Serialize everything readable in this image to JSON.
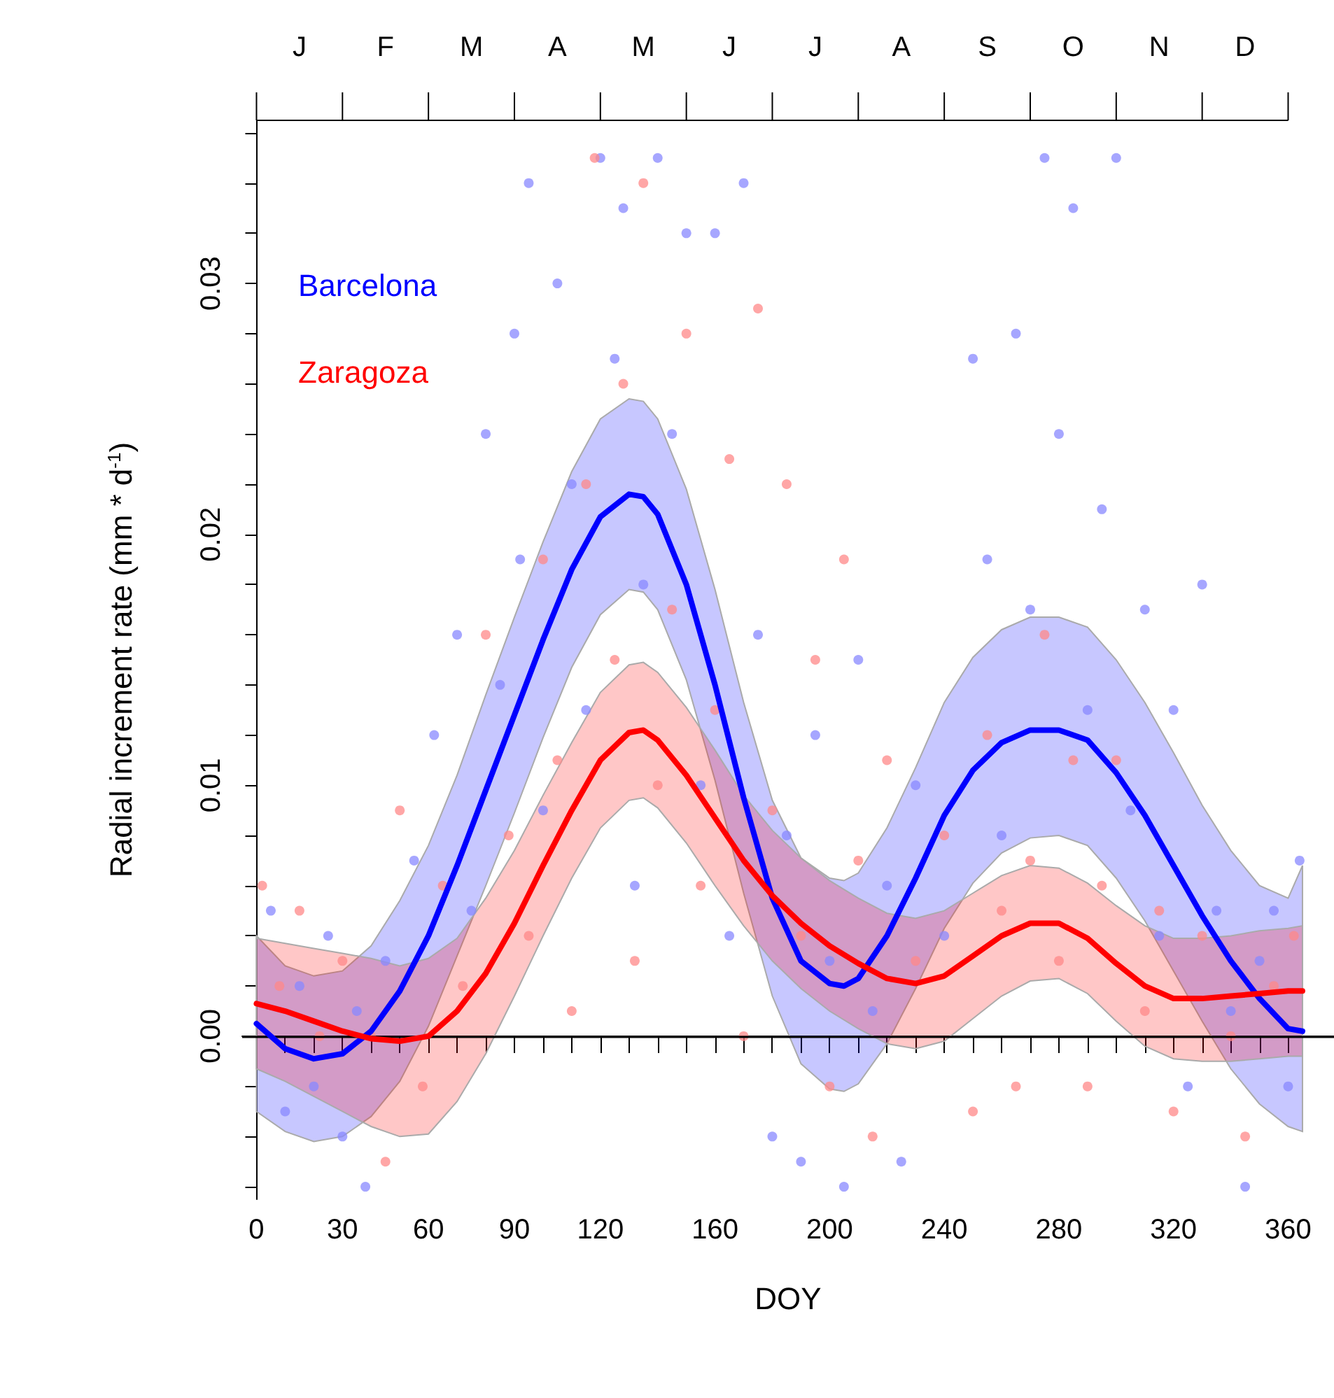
{
  "chart_data": {
    "type": "scatter",
    "xlabel": "DOY",
    "ylabel": "Radial increment rate (mm * d$^{-1}$)",
    "legend": "top left",
    "grid": false,
    "xlim": [
      -5,
      376
    ],
    "ylim": [
      -0.0065,
      0.0365
    ],
    "xticks": [
      0,
      {
        "value": 10,
        "label": null
      },
      {
        "value": 20,
        "label": null
      },
      30,
      {
        "value": 40,
        "label": null
      },
      {
        "value": 50,
        "label": null
      },
      60,
      {
        "value": 70,
        "label": null
      },
      {
        "value": 80,
        "label": null
      },
      90,
      {
        "value": 100,
        "label": null
      },
      {
        "value": 110,
        "label": null
      },
      120,
      {
        "value": 130,
        "label": null
      },
      {
        "value": 140,
        "label": null
      },
      {
        "value": 150,
        "label": null
      },
      160,
      {
        "value": 170,
        "label": null
      },
      {
        "value": 180,
        "label": null
      },
      {
        "value": 190,
        "label": null
      },
      200,
      {
        "value": 210,
        "label": null
      },
      {
        "value": 220,
        "label": null
      },
      {
        "value": 230,
        "label": null
      },
      240,
      {
        "value": 250,
        "label": null
      },
      {
        "value": 260,
        "label": null
      },
      {
        "value": 270,
        "label": null
      },
      280,
      {
        "value": 290,
        "label": null
      },
      {
        "value": 300,
        "label": null
      },
      {
        "value": 310,
        "label": null
      },
      320,
      {
        "value": 330,
        "label": null
      },
      {
        "value": 340,
        "label": null
      },
      {
        "value": 350,
        "label": null
      },
      360
    ],
    "annotations": [
      "J",
      "F",
      "M",
      "A",
      "M",
      "J",
      "J",
      "A",
      "S",
      "O",
      "N",
      "D"
    ],
    "yticks": [
      {
        "value": -0.006,
        "label": null
      },
      {
        "value": -0.004,
        "label": null
      },
      {
        "value": -0.002,
        "label": null
      },
      {
        "value": 0,
        "label": "0.00"
      },
      {
        "value": 0.002,
        "label": null
      },
      {
        "value": 0.004,
        "label": null
      },
      {
        "value": 0.006,
        "label": null
      },
      {
        "value": 0.008,
        "label": null
      },
      0.01,
      {
        "value": 0.012,
        "label": null
      },
      {
        "value": 0.014,
        "label": null
      },
      {
        "value": 0.016,
        "label": null
      },
      {
        "value": 0.018,
        "label": null
      },
      0.02,
      {
        "value": 0.022,
        "label": null
      },
      {
        "value": 0.024,
        "label": null
      },
      {
        "value": 0.026,
        "label": null
      },
      {
        "value": 0.028,
        "label": null
      },
      0.03,
      {
        "value": 0.032,
        "label": null
      },
      {
        "value": 0.034,
        "label": null
      },
      {
        "value": 0.036,
        "label": null
      }
    ],
    "ref_lines": [
      {
        "axis": "y",
        "value": 0,
        "color": "#000000"
      }
    ],
    "series": [
      {
        "type": "scatter",
        "marker": "circle",
        "color": "#8888ff",
        "x": [
          5,
          10,
          15,
          20,
          25,
          30,
          35,
          38,
          45,
          55,
          62,
          70,
          75,
          80,
          85,
          90,
          92,
          95,
          100,
          105,
          110,
          115,
          120,
          125,
          128,
          132,
          135,
          140,
          145,
          150,
          155,
          160,
          165,
          170,
          175,
          180,
          185,
          190,
          195,
          200,
          205,
          210,
          215,
          220,
          225,
          230,
          240,
          250,
          255,
          260,
          265,
          270,
          275,
          280,
          285,
          290,
          295,
          300,
          305,
          310,
          315,
          320,
          325,
          330,
          335,
          340,
          345,
          350,
          355,
          360,
          364
        ],
        "values": [
          0.005,
          -0.003,
          0.002,
          -0.002,
          0.004,
          -0.004,
          0.001,
          -0.006,
          0.003,
          0.007,
          0.012,
          0.016,
          0.005,
          0.024,
          0.014,
          0.028,
          0.019,
          0.034,
          0.009,
          0.03,
          0.022,
          0.013,
          0.035,
          0.027,
          0.033,
          0.006,
          0.018,
          0.035,
          0.024,
          0.032,
          0.01,
          0.032,
          0.004,
          0.034,
          0.016,
          -0.004,
          0.008,
          -0.005,
          0.012,
          0.003,
          -0.006,
          0.015,
          0.001,
          0.006,
          -0.005,
          0.01,
          0.004,
          0.027,
          0.019,
          0.008,
          0.028,
          0.017,
          0.035,
          0.024,
          0.033,
          0.013,
          0.021,
          0.035,
          0.009,
          0.017,
          0.004,
          0.013,
          -0.002,
          0.018,
          0.005,
          0.001,
          -0.006,
          0.003,
          0.005,
          -0.002,
          0.007
        ]
      },
      {
        "type": "scatter",
        "marker": "circle",
        "color": "#ff8888",
        "x": [
          2,
          8,
          15,
          22,
          30,
          40,
          45,
          50,
          58,
          65,
          72,
          80,
          88,
          95,
          100,
          105,
          110,
          115,
          118,
          125,
          128,
          132,
          135,
          140,
          145,
          150,
          155,
          160,
          165,
          170,
          175,
          180,
          185,
          190,
          195,
          200,
          205,
          210,
          215,
          220,
          230,
          240,
          250,
          255,
          260,
          265,
          270,
          275,
          280,
          285,
          290,
          295,
          300,
          310,
          315,
          320,
          330,
          340,
          345,
          355,
          362
        ],
        "values": [
          0.006,
          0.002,
          0.005,
          0,
          0.003,
          0,
          -0.005,
          0.009,
          -0.002,
          0.006,
          0.002,
          0.016,
          0.008,
          0.004,
          0.019,
          0.011,
          0.001,
          0.022,
          0.035,
          0.015,
          0.026,
          0.003,
          0.034,
          0.01,
          0.017,
          0.028,
          0.006,
          0.013,
          0.023,
          0,
          0.029,
          0.009,
          0.022,
          0.004,
          0.015,
          -0.002,
          0.019,
          0.007,
          -0.004,
          0.011,
          0.003,
          0.008,
          -0.003,
          0.012,
          0.005,
          -0.002,
          0.007,
          0.016,
          0.003,
          0.011,
          -0.002,
          0.006,
          0.011,
          0.001,
          0.005,
          -0.003,
          0.004,
          0,
          -0.004,
          0.002,
          0.004
        ]
      },
      {
        "type": "line",
        "name": "Barcelona",
        "marker": "none",
        "line_style": "solid",
        "color": "#0000ff",
        "x": [
          0,
          10,
          20,
          30,
          40,
          50,
          60,
          70,
          80,
          90,
          100,
          110,
          120,
          130,
          135,
          140,
          150,
          160,
          170,
          180,
          190,
          200,
          205,
          210,
          220,
          230,
          240,
          250,
          260,
          270,
          280,
          290,
          300,
          310,
          320,
          330,
          340,
          350,
          360,
          365
        ],
        "values": [
          0.0005,
          -0.0005,
          -0.0009,
          -0.0007,
          0.0002,
          0.0018,
          0.004,
          0.0068,
          0.0098,
          0.0128,
          0.0158,
          0.0186,
          0.0207,
          0.0216,
          0.0215,
          0.0208,
          0.018,
          0.014,
          0.0095,
          0.0055,
          0.003,
          0.0021,
          0.002,
          0.0023,
          0.004,
          0.0063,
          0.0088,
          0.0106,
          0.0117,
          0.0122,
          0.0122,
          0.0118,
          0.0105,
          0.0088,
          0.0068,
          0.0048,
          0.003,
          0.0015,
          0.0003,
          0.0002
        ],
        "lower": [
          -0.003,
          -0.0038,
          -0.0042,
          -0.004,
          -0.0032,
          -0.0018,
          0.0004,
          0.0032,
          0.006,
          0.0089,
          0.0119,
          0.0147,
          0.0168,
          0.0178,
          0.0177,
          0.017,
          0.0142,
          0.0102,
          0.0057,
          0.0016,
          -0.0011,
          -0.0021,
          -0.0022,
          -0.0019,
          -0.0003,
          0.0019,
          0.0043,
          0.0061,
          0.0073,
          0.0079,
          0.008,
          0.0076,
          0.0063,
          0.0046,
          0.0026,
          0.0006,
          -0.0013,
          -0.0027,
          -0.0036,
          -0.0038
        ],
        "upper": [
          0.004,
          0.0028,
          0.0024,
          0.0026,
          0.0036,
          0.0054,
          0.0076,
          0.0104,
          0.0136,
          0.0167,
          0.0197,
          0.0225,
          0.0246,
          0.0254,
          0.0253,
          0.0246,
          0.0218,
          0.0178,
          0.0133,
          0.0094,
          0.0071,
          0.0063,
          0.0062,
          0.0065,
          0.0083,
          0.0107,
          0.0133,
          0.0151,
          0.0162,
          0.0167,
          0.0167,
          0.0163,
          0.015,
          0.0133,
          0.0113,
          0.0092,
          0.0074,
          0.006,
          0.0055,
          0.0068
        ]
      },
      {
        "type": "line",
        "name": "Zaragoza",
        "marker": "none",
        "line_style": "solid",
        "color": "#ff0000",
        "x": [
          0,
          10,
          20,
          30,
          40,
          50,
          60,
          70,
          80,
          90,
          100,
          110,
          120,
          130,
          135,
          140,
          150,
          160,
          170,
          180,
          190,
          200,
          210,
          220,
          230,
          240,
          250,
          260,
          270,
          280,
          290,
          300,
          310,
          320,
          330,
          340,
          350,
          360,
          365
        ],
        "values": [
          0.0013,
          0.001,
          0.0006,
          0.0002,
          -0.0001,
          -0.0002,
          0,
          0.001,
          0.0025,
          0.0045,
          0.0068,
          0.009,
          0.011,
          0.0121,
          0.0122,
          0.0118,
          0.0104,
          0.0087,
          0.007,
          0.0056,
          0.0045,
          0.0036,
          0.0029,
          0.0023,
          0.0021,
          0.0024,
          0.0032,
          0.004,
          0.0045,
          0.0045,
          0.0039,
          0.0029,
          0.002,
          0.0015,
          0.0015,
          0.0016,
          0.0017,
          0.0018,
          0.0018
        ],
        "lower": [
          -0.0013,
          -0.0018,
          -0.0024,
          -0.003,
          -0.0036,
          -0.004,
          -0.0039,
          -0.0026,
          -0.0007,
          0.0016,
          0.004,
          0.0063,
          0.0083,
          0.0094,
          0.0095,
          0.0091,
          0.0077,
          0.006,
          0.0044,
          0.003,
          0.0019,
          0.001,
          0.0003,
          -0.0003,
          -0.0005,
          -0.0002,
          0.0007,
          0.0016,
          0.0022,
          0.0023,
          0.0017,
          0.0006,
          -0.0004,
          -0.0009,
          -0.001,
          -0.001,
          -0.0009,
          -0.0008,
          -0.0008
        ],
        "upper": [
          0.0039,
          0.0037,
          0.0035,
          0.0033,
          0.0031,
          0.0028,
          0.0031,
          0.0039,
          0.0055,
          0.0074,
          0.0096,
          0.0117,
          0.0137,
          0.0148,
          0.0149,
          0.0145,
          0.0131,
          0.0114,
          0.0096,
          0.0082,
          0.0071,
          0.0062,
          0.0055,
          0.0049,
          0.0047,
          0.005,
          0.0057,
          0.0064,
          0.0068,
          0.0067,
          0.0061,
          0.0052,
          0.0044,
          0.0039,
          0.0039,
          0.004,
          0.0042,
          0.0043,
          0.0044
        ]
      }
    ]
  }
}
